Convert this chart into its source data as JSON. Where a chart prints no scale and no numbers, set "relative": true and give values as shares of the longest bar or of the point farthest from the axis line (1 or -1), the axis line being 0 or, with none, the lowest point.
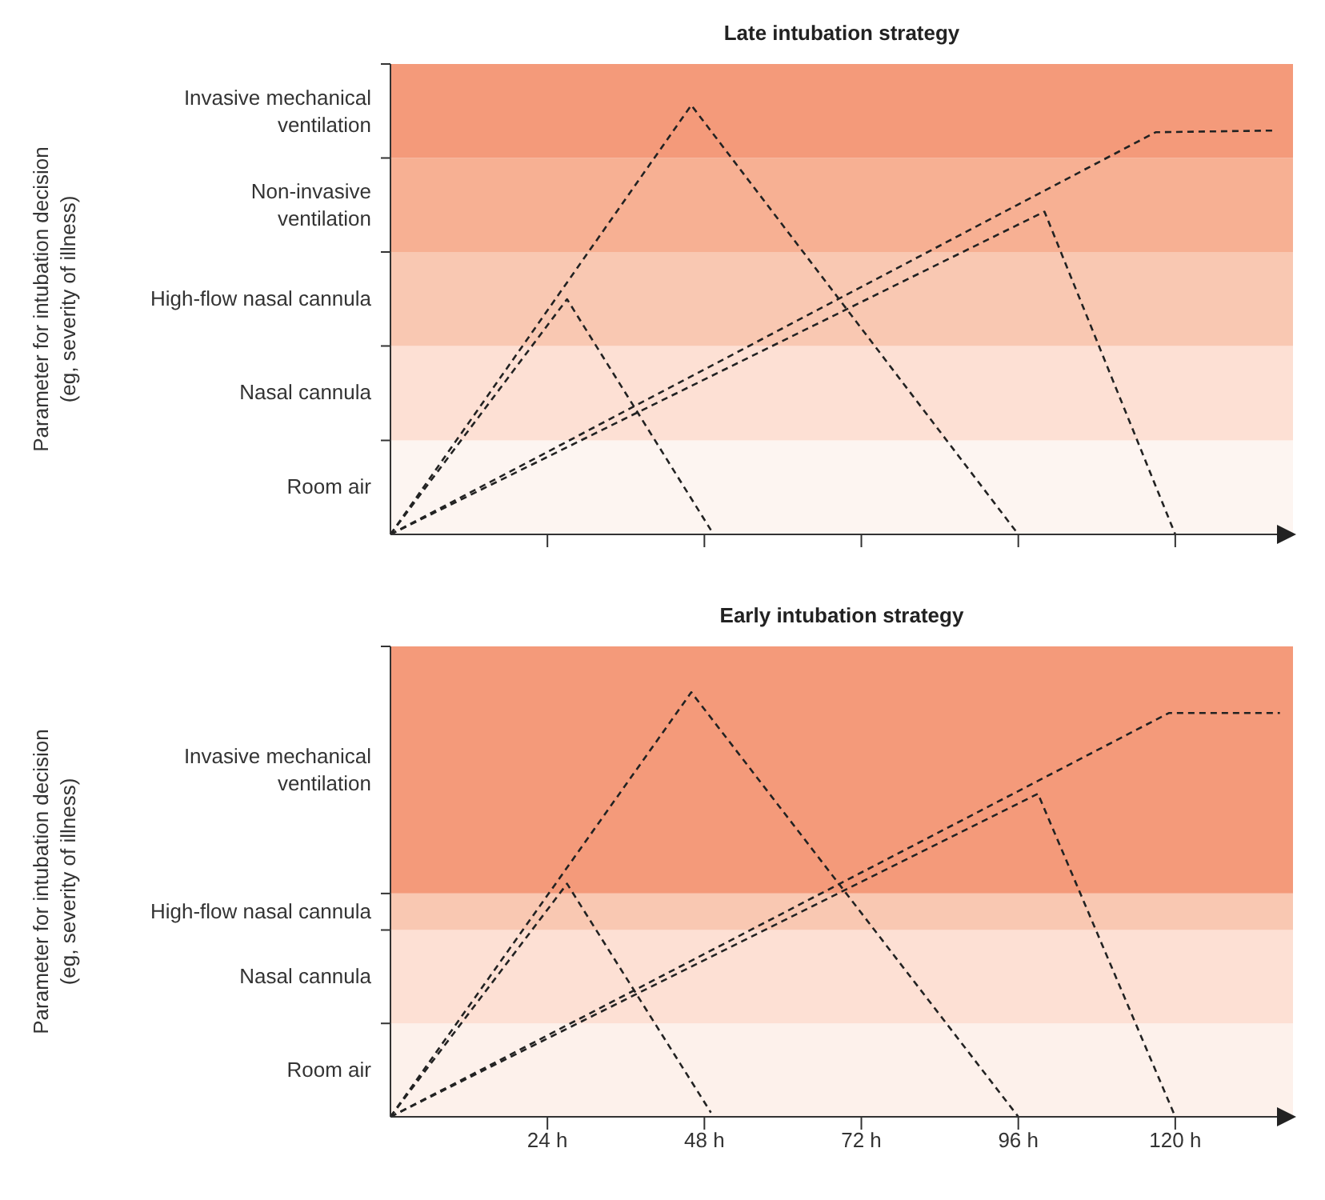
{
  "chart_data": [
    {
      "type": "line",
      "title": "Late intubation strategy",
      "ylabel": "Parameter for intubation decision\n(eg, severity of illness)",
      "relative": true,
      "line_style": "dashed",
      "marker": "none",
      "grid": false,
      "tick_labels": false,
      "xlim": [
        0,
        138
      ],
      "xticks": [
        24,
        48,
        72,
        96,
        120
      ],
      "bands": [
        {
          "axis": "y",
          "from": 0,
          "to": 0.219,
          "label": "Room air",
          "color": "#fdf5f1"
        },
        {
          "axis": "y",
          "from": 0.219,
          "to": 0.439,
          "label": "Nasal cannula",
          "color": "#fde0d4"
        },
        {
          "axis": "y",
          "from": 0.439,
          "to": 0.658,
          "label": "High-flow nasal cannula",
          "color": "#f9c8b2"
        },
        {
          "axis": "y",
          "from": 0.658,
          "to": 0.877,
          "label": "Non-invasive\nventilation",
          "color": "#f7b093"
        },
        {
          "axis": "y",
          "from": 0.877,
          "to": 1.096,
          "label": "Invasive mechanical\nventilation",
          "color": "#f49a7a"
        }
      ],
      "series": [
        {
          "color": "#222222",
          "x": [
            0,
            27,
            49
          ],
          "values": [
            0,
            0.548,
            0.01
          ]
        },
        {
          "color": "#222222",
          "x": [
            0,
            46,
            96
          ],
          "values": [
            0,
            1,
            0
          ]
        },
        {
          "color": "#222222",
          "x": [
            0,
            100,
            120
          ],
          "values": [
            0,
            0.752,
            0
          ]
        },
        {
          "color": "#222222",
          "x": [
            0,
            117,
            135
          ],
          "values": [
            0,
            0.937,
            0.941
          ]
        }
      ]
    },
    {
      "type": "line",
      "title": "Early intubation strategy",
      "ylabel": "Parameter for intubation decision\n(eg, severity of illness)",
      "relative": true,
      "line_style": "dashed",
      "marker": "none",
      "grid": false,
      "xlim": [
        0,
        138
      ],
      "xticks": [
        {
          "value": 24,
          "label": "24 h"
        },
        {
          "value": 48,
          "label": "48 h"
        },
        {
          "value": 72,
          "label": "72 h"
        },
        {
          "value": 96,
          "label": "96 h"
        },
        {
          "value": 120,
          "label": "120 h"
        }
      ],
      "bands": [
        {
          "axis": "y",
          "from": 0,
          "to": 0.22,
          "label": "Room air",
          "color": "#fdf1eb"
        },
        {
          "axis": "y",
          "from": 0.22,
          "to": 0.44,
          "label": "Nasal cannula",
          "color": "#fde0d4"
        },
        {
          "axis": "y",
          "from": 0.44,
          "to": 0.526,
          "label": "High-flow nasal cannula",
          "color": "#f9c8b2"
        },
        {
          "axis": "y",
          "from": 0.526,
          "to": 1.108,
          "label": "Invasive mechanical\nventilation",
          "color": "#f49a7a"
        }
      ],
      "series": [
        {
          "color": "#222222",
          "x": [
            0,
            27,
            49
          ],
          "values": [
            0,
            0.549,
            0.01
          ]
        },
        {
          "color": "#222222",
          "x": [
            0,
            46,
            96
          ],
          "values": [
            0,
            1,
            0
          ]
        },
        {
          "color": "#222222",
          "x": [
            0,
            99,
            120
          ],
          "values": [
            0,
            0.761,
            0
          ]
        },
        {
          "color": "#222222",
          "x": [
            0,
            119,
            136
          ],
          "values": [
            0,
            0.951,
            0.951
          ]
        }
      ]
    }
  ]
}
